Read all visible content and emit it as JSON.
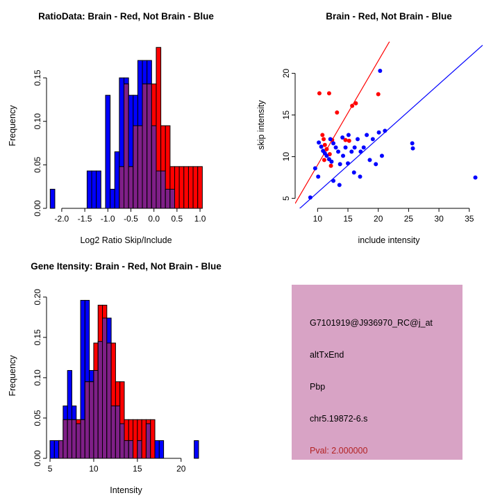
{
  "colors": {
    "red": "#FF0000",
    "blue": "#0000FF",
    "overlap": "#7F1F87",
    "axis": "#000000",
    "background": "#FFFFFF"
  },
  "chart_data": [
    {
      "name": "ratio_histogram",
      "type": "bar",
      "chart_kind": "overlaid histogram",
      "title": "RatioData: Brain - Red, Not Brain - Blue",
      "xlabel": "Log2 Ratio Skip/Include",
      "ylabel": "Frequency",
      "xlim": [
        -2.33,
        1.12
      ],
      "ylim": [
        0,
        0.19
      ],
      "xticks": [
        "-2.0",
        "-1.5",
        "-1.0",
        "-0.5",
        "0.0",
        "0.5",
        "1.0"
      ],
      "yticks": [
        "0.00",
        "0.05",
        "0.10",
        "0.15"
      ],
      "legend": {
        "red": "Brain",
        "blue": "Not Brain"
      },
      "bin_width": 0.1,
      "bins_format": [
        "bin_left_edge",
        "blue_frequency",
        "red_frequency"
      ],
      "bins": [
        [
          -2.25,
          0.022,
          0
        ],
        [
          -1.45,
          0.043,
          0
        ],
        [
          -1.35,
          0.043,
          0
        ],
        [
          -1.25,
          0.043,
          0
        ],
        [
          -1.05,
          0.13,
          0
        ],
        [
          -0.95,
          0.022,
          0
        ],
        [
          -0.85,
          0.065,
          0
        ],
        [
          -0.75,
          0.15,
          0.048
        ],
        [
          -0.65,
          0.15,
          0.143
        ],
        [
          -0.55,
          0.13,
          0.048
        ],
        [
          -0.45,
          0.13,
          0.095
        ],
        [
          -0.35,
          0.17,
          0.095
        ],
        [
          -0.25,
          0.17,
          0.143
        ],
        [
          -0.15,
          0.17,
          0.143
        ],
        [
          -0.05,
          0.095,
          0.143
        ],
        [
          0.05,
          0.043,
          0.185
        ],
        [
          0.15,
          0.043,
          0.095
        ],
        [
          0.25,
          0.022,
          0.095
        ],
        [
          0.35,
          0.022,
          0.048
        ],
        [
          0.45,
          0,
          0.048
        ],
        [
          0.55,
          0,
          0.048
        ],
        [
          0.65,
          0,
          0.048
        ],
        [
          0.75,
          0,
          0.048
        ],
        [
          0.85,
          0,
          0.048
        ],
        [
          0.95,
          0,
          0.048
        ]
      ]
    },
    {
      "name": "intensity_scatter",
      "type": "scatter",
      "title": "Brain - Red, Not Brain - Blue",
      "xlabel": "include intensity",
      "ylabel": "skip intensity",
      "xlim": [
        6.3,
        37.2
      ],
      "ylim": [
        3.8,
        23.8
      ],
      "xticks": [
        "10",
        "15",
        "20",
        "25",
        "30",
        "35"
      ],
      "yticks": [
        "5",
        "10",
        "15",
        "20"
      ],
      "points_format": [
        "include_intensity",
        "skip_intensity"
      ],
      "series": [
        {
          "name": "Brain",
          "color": "red",
          "points": [
            [
              10.3,
              17.6
            ],
            [
              11.9,
              17.6
            ],
            [
              13.2,
              15.3
            ],
            [
              15.7,
              16.1
            ],
            [
              16.3,
              16.4
            ],
            [
              20.0,
              17.5
            ],
            [
              10.8,
              12.6
            ],
            [
              11.0,
              12.1
            ],
            [
              12.4,
              12.0
            ],
            [
              11.2,
              11.4
            ],
            [
              11.5,
              10.9
            ],
            [
              12.0,
              10.3
            ],
            [
              14.6,
              12.0
            ],
            [
              15.2,
              11.9
            ],
            [
              11.1,
              9.6
            ],
            [
              12.2,
              8.9
            ]
          ]
        },
        {
          "name": "Not Brain",
          "color": "blue",
          "points": [
            [
              8.8,
              5.1
            ],
            [
              13.6,
              6.6
            ],
            [
              36.0,
              7.5
            ],
            [
              25.6,
              11.6
            ],
            [
              25.7,
              11.0
            ],
            [
              20.3,
              20.3
            ],
            [
              10.2,
              11.7
            ],
            [
              10.6,
              11.2
            ],
            [
              10.9,
              10.7
            ],
            [
              11.2,
              10.4
            ],
            [
              11.5,
              10.1
            ],
            [
              11.9,
              9.7
            ],
            [
              12.3,
              9.4
            ],
            [
              12.1,
              12.1
            ],
            [
              12.6,
              11.6
            ],
            [
              13.0,
              11.1
            ],
            [
              13.4,
              10.6
            ],
            [
              13.7,
              9.1
            ],
            [
              14.1,
              12.3
            ],
            [
              14.2,
              10.1
            ],
            [
              14.6,
              11.1
            ],
            [
              15.1,
              12.6
            ],
            [
              15.0,
              9.2
            ],
            [
              15.6,
              10.6
            ],
            [
              16.1,
              11.1
            ],
            [
              16.0,
              8.1
            ],
            [
              16.6,
              12.1
            ],
            [
              17.1,
              10.6
            ],
            [
              17.0,
              7.6
            ],
            [
              17.6,
              11.1
            ],
            [
              18.1,
              12.6
            ],
            [
              18.6,
              9.6
            ],
            [
              19.1,
              12.1
            ],
            [
              19.6,
              9.1
            ],
            [
              20.1,
              12.9
            ],
            [
              20.6,
              10.1
            ],
            [
              21.1,
              13.1
            ],
            [
              9.6,
              8.6
            ],
            [
              10.1,
              7.6
            ],
            [
              12.6,
              7.1
            ]
          ]
        }
      ],
      "fit_lines": [
        {
          "color": "red",
          "slope": 1.25,
          "intercept": -3.5
        },
        {
          "color": "blue",
          "slope": 0.65,
          "intercept": -0.8
        }
      ]
    },
    {
      "name": "gene_intensity_histogram",
      "type": "bar",
      "chart_kind": "overlaid histogram",
      "title": "Gene Itensity: Brain - Red, Not Brain - Blue",
      "xlabel": "Intensity",
      "ylabel": "Frequency",
      "xlim": [
        4.6,
        22.8
      ],
      "ylim": [
        0,
        0.205
      ],
      "xticks": [
        "5",
        "10",
        "15",
        "20"
      ],
      "yticks": [
        "0.00",
        "0.05",
        "0.10",
        "0.15",
        "0.20"
      ],
      "legend": {
        "red": "Brain",
        "blue": "Not Brain"
      },
      "bin_width": 0.5,
      "bins_format": [
        "bin_left_edge",
        "blue_frequency",
        "red_frequency"
      ],
      "bins": [
        [
          5.0,
          0.022,
          0
        ],
        [
          5.5,
          0.022,
          0
        ],
        [
          6.0,
          0.022,
          0.022
        ],
        [
          6.5,
          0.065,
          0.048
        ],
        [
          7.0,
          0.109,
          0.048
        ],
        [
          7.5,
          0.065,
          0.048
        ],
        [
          8.0,
          0.043,
          0.048
        ],
        [
          8.5,
          0.196,
          0.048
        ],
        [
          9.0,
          0.196,
          0.095
        ],
        [
          9.5,
          0.109,
          0.095
        ],
        [
          10.0,
          0.109,
          0.143
        ],
        [
          10.5,
          0.145,
          0.19
        ],
        [
          11.0,
          0.174,
          0.19
        ],
        [
          11.5,
          0.174,
          0.143
        ],
        [
          12.0,
          0.065,
          0.143
        ],
        [
          12.5,
          0.065,
          0.095
        ],
        [
          13.0,
          0.043,
          0.095
        ],
        [
          13.5,
          0.022,
          0.048
        ],
        [
          14.0,
          0.022,
          0.048
        ],
        [
          14.5,
          0,
          0.048
        ],
        [
          15.0,
          0.022,
          0.048
        ],
        [
          15.5,
          0,
          0.048
        ],
        [
          16.0,
          0.043,
          0.048
        ],
        [
          16.5,
          0,
          0.048
        ],
        [
          17.0,
          0.022,
          0
        ],
        [
          17.5,
          0.022,
          0
        ],
        [
          21.5,
          0.022,
          0
        ]
      ]
    }
  ],
  "info_panel": {
    "bg_color": "#D8A3C5",
    "probe_id": "G7101919@J936970_RC@j_at",
    "splice_type": "altTxEnd",
    "gene_symbol": "Pbp",
    "location": "chr5.19872-6.s",
    "pval_text": "Pval: 2.000000",
    "pval_color": "#B22222"
  }
}
